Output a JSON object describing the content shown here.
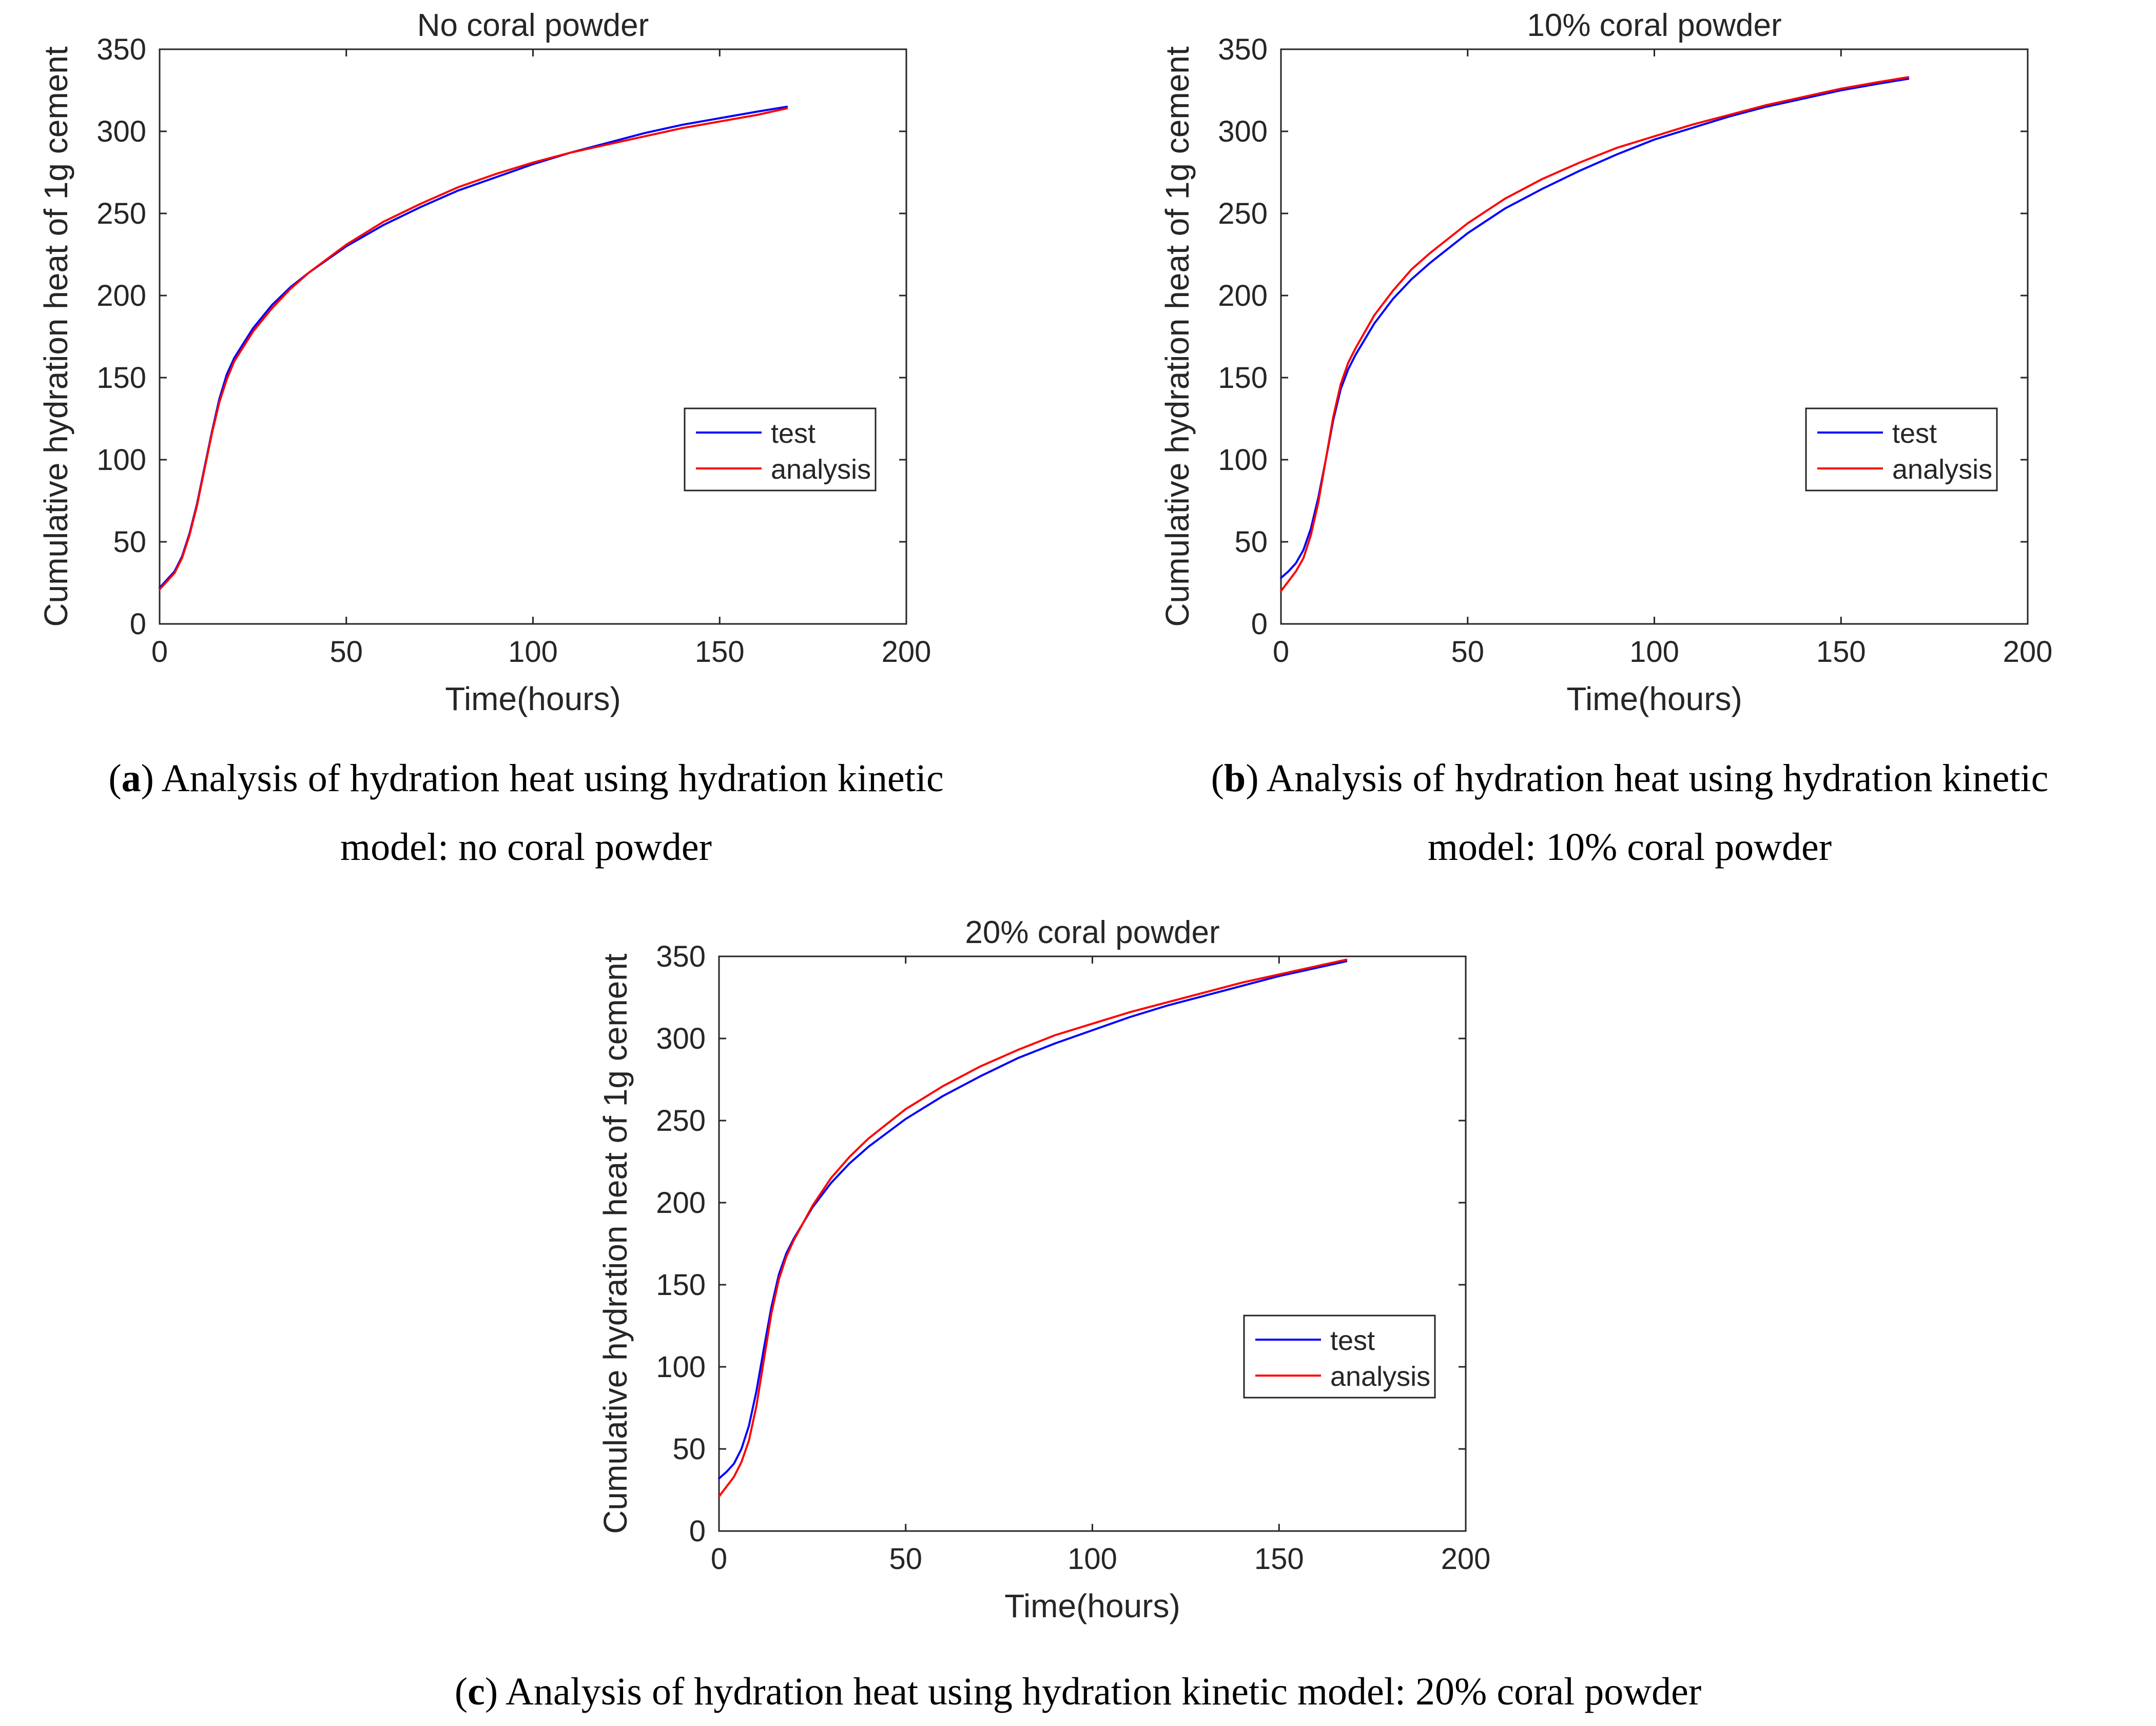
{
  "chart_data": [
    {
      "id": "a",
      "type": "line",
      "title": "No coral powder",
      "xlabel": "Time(hours)",
      "ylabel": "Cumulative hydration heat of 1g cement",
      "xlim": [
        0,
        200
      ],
      "ylim": [
        0,
        350
      ],
      "xticks": [
        0,
        50,
        100,
        150,
        200
      ],
      "yticks": [
        0,
        50,
        100,
        150,
        200,
        250,
        300,
        350
      ],
      "legend_position": "right-middle",
      "grid": false,
      "series": [
        {
          "name": "test",
          "color": "#0000ff",
          "x": [
            0,
            2,
            4,
            6,
            8,
            10,
            12,
            14,
            16,
            18,
            20,
            25,
            30,
            35,
            40,
            50,
            60,
            70,
            80,
            90,
            100,
            110,
            120,
            130,
            140,
            150,
            160,
            168
          ],
          "y": [
            22,
            27,
            32,
            41,
            55,
            73,
            95,
            117,
            137,
            152,
            162,
            180,
            194,
            205,
            214,
            230,
            243,
            254,
            264,
            272,
            280,
            287,
            293,
            299,
            304,
            308,
            312,
            315
          ]
        },
        {
          "name": "analysis",
          "color": "#ff0000",
          "x": [
            0,
            2,
            4,
            6,
            8,
            10,
            12,
            14,
            16,
            18,
            20,
            25,
            30,
            35,
            40,
            50,
            60,
            70,
            80,
            90,
            100,
            110,
            120,
            130,
            140,
            150,
            160,
            168
          ],
          "y": [
            21,
            26,
            31,
            40,
            54,
            72,
            94,
            116,
            135,
            149,
            160,
            178,
            192,
            204,
            214,
            231,
            245,
            256,
            266,
            274,
            281,
            287,
            292,
            297,
            302,
            306,
            310,
            314
          ]
        }
      ]
    },
    {
      "id": "b",
      "type": "line",
      "title": "10% coral powder",
      "xlabel": "Time(hours)",
      "ylabel": "Cumulative hydration heat of 1g cement",
      "xlim": [
        0,
        200
      ],
      "ylim": [
        0,
        350
      ],
      "xticks": [
        0,
        50,
        100,
        150,
        200
      ],
      "yticks": [
        0,
        50,
        100,
        150,
        200,
        250,
        300,
        350
      ],
      "legend_position": "right-middle",
      "grid": false,
      "series": [
        {
          "name": "test",
          "color": "#0000ff",
          "x": [
            0,
            2,
            4,
            6,
            8,
            10,
            12,
            14,
            16,
            18,
            20,
            25,
            30,
            35,
            40,
            50,
            60,
            70,
            80,
            90,
            100,
            110,
            120,
            130,
            140,
            150,
            160,
            168
          ],
          "y": [
            28,
            32,
            37,
            45,
            58,
            77,
            100,
            124,
            143,
            155,
            164,
            183,
            198,
            210,
            220,
            238,
            253,
            265,
            276,
            286,
            295,
            302,
            309,
            315,
            320,
            325,
            329,
            332
          ]
        },
        {
          "name": "analysis",
          "color": "#ff0000",
          "x": [
            0,
            2,
            4,
            6,
            8,
            10,
            12,
            14,
            16,
            18,
            20,
            25,
            30,
            35,
            40,
            50,
            60,
            70,
            80,
            90,
            100,
            110,
            120,
            130,
            140,
            150,
            160,
            168
          ],
          "y": [
            20,
            26,
            32,
            40,
            54,
            74,
            100,
            126,
            146,
            159,
            168,
            188,
            203,
            216,
            226,
            244,
            259,
            271,
            281,
            290,
            297,
            304,
            310,
            316,
            321,
            326,
            330,
            333
          ]
        }
      ]
    },
    {
      "id": "c",
      "type": "line",
      "title": "20% coral powder",
      "xlabel": "Time(hours)",
      "ylabel": "Cumulative hydration heat of 1g cement",
      "xlim": [
        0,
        200
      ],
      "ylim": [
        0,
        350
      ],
      "xticks": [
        0,
        50,
        100,
        150,
        200
      ],
      "yticks": [
        0,
        50,
        100,
        150,
        200,
        250,
        300,
        350
      ],
      "legend_position": "right-middle",
      "grid": false,
      "series": [
        {
          "name": "test",
          "color": "#0000ff",
          "x": [
            0,
            2,
            4,
            6,
            8,
            10,
            12,
            14,
            16,
            18,
            20,
            25,
            30,
            35,
            40,
            50,
            60,
            70,
            80,
            90,
            100,
            110,
            120,
            130,
            140,
            150,
            160,
            168
          ],
          "y": [
            32,
            36,
            41,
            50,
            64,
            85,
            111,
            136,
            156,
            169,
            178,
            197,
            212,
            224,
            234,
            251,
            265,
            277,
            288,
            297,
            305,
            313,
            320,
            326,
            332,
            338,
            343,
            347
          ]
        },
        {
          "name": "analysis",
          "color": "#ff0000",
          "x": [
            0,
            2,
            4,
            6,
            8,
            10,
            12,
            14,
            16,
            18,
            20,
            25,
            30,
            35,
            40,
            50,
            60,
            70,
            80,
            90,
            100,
            110,
            120,
            130,
            140,
            150,
            160,
            168
          ],
          "y": [
            21,
            27,
            33,
            42,
            55,
            76,
            104,
            132,
            153,
            167,
            177,
            198,
            215,
            228,
            239,
            257,
            271,
            283,
            293,
            302,
            309,
            316,
            322,
            328,
            334,
            339,
            344,
            348
          ]
        }
      ]
    }
  ],
  "captions": {
    "a": {
      "label": "a",
      "open": "(",
      "close": ")",
      "line1": " Analysis of hydration heat using hydration kinetic",
      "line2": "model: no coral powder"
    },
    "b": {
      "label": "b",
      "open": "(",
      "close": ")",
      "line1": " Analysis of hydration heat using hydration kinetic",
      "line2": "model: 10% coral powder"
    },
    "c": {
      "label": "c",
      "open": "(",
      "close": ")",
      "line1": " Analysis of hydration heat using hydration kinetic model: 20% coral powder"
    }
  },
  "colors": {
    "axis": "#262626",
    "background": "#ffffff"
  }
}
